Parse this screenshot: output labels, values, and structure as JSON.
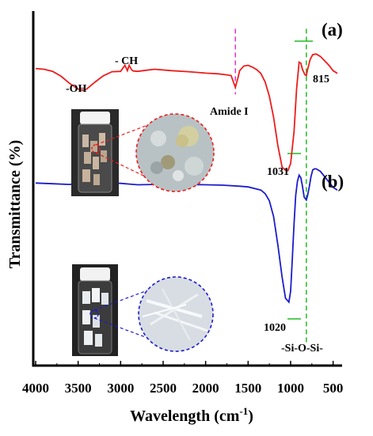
{
  "colors": {
    "series_a": "#ee1c1c",
    "series_b": "#1c1ccc",
    "amide_marker": "#dd33cc",
    "sio_marker": "#22bb22",
    "axis": "#000000"
  },
  "icons": {
    "vial_a": "vial-photo-icon",
    "zoom_a": "magnified-sample-red-circle",
    "vial_b": "vial-photo-icon",
    "zoom_b": "magnified-sample-blue-circle"
  },
  "chart_data": {
    "type": "line",
    "xlabel": "Wavelength (cm",
    "xlabel_sup": "-1",
    "xlabel_close": ")",
    "ylabel": "Transmittance (%)",
    "xlim": [
      4000,
      450
    ],
    "x_reversed": true,
    "grid": false,
    "x_ticks": [
      "4000",
      "3500",
      "3000",
      "2500",
      "2000",
      "1500",
      "1000",
      "500"
    ],
    "x_tick_values": [
      4000,
      3500,
      3000,
      2500,
      2000,
      1500,
      1000,
      500
    ],
    "ylim": [
      0,
      100
    ],
    "panel_labels": [
      "(a)",
      "(b)"
    ],
    "annotations": {
      "oh": "-OH",
      "ch": "- CH",
      "amide": "Amide I",
      "peak_a_815": "815",
      "peak_a_1031": "1031",
      "peak_b_1020": "1020",
      "sio": "-Si-O-Si-"
    },
    "reference_lines": [
      {
        "name": "Amide I",
        "x": 1650
      },
      {
        "name": "-Si-O-Si-",
        "x": 815
      }
    ],
    "series": [
      {
        "id": "a",
        "x": [
          4000,
          3900,
          3800,
          3700,
          3600,
          3500,
          3450,
          3400,
          3350,
          3300,
          3200,
          3100,
          3000,
          2950,
          2920,
          2900,
          2870,
          2850,
          2800,
          2700,
          2600,
          2400,
          2200,
          2000,
          1850,
          1750,
          1700,
          1650,
          1620,
          1600,
          1550,
          1500,
          1450,
          1400,
          1350,
          1300,
          1250,
          1200,
          1150,
          1100,
          1060,
          1031,
          1000,
          960,
          930,
          900,
          880,
          860,
          830,
          815,
          800,
          770,
          740,
          700,
          650,
          600,
          550,
          500,
          450
        ],
        "y": [
          83.8,
          83.6,
          83.0,
          81.6,
          79.6,
          78.0,
          77.7,
          78.0,
          79.0,
          80.0,
          81.8,
          82.9,
          83.0,
          84.7,
          83.2,
          84.7,
          83.4,
          83.1,
          83.0,
          83.3,
          83.6,
          83.2,
          82.9,
          82.5,
          82.3,
          82.0,
          81.8,
          78.5,
          81.1,
          83.2,
          84.5,
          84.7,
          84.2,
          83.5,
          82.4,
          80.0,
          76.0,
          70.0,
          62.0,
          56.0,
          55.1,
          55.0,
          57.0,
          66.0,
          78.0,
          85.6,
          85.3,
          83.5,
          82.0,
          81.8,
          83.5,
          86.4,
          87.7,
          87.9,
          87.2,
          86.0,
          84.7,
          83.2,
          82.4
        ]
      },
      {
        "id": "b",
        "x": [
          4000,
          3800,
          3600,
          3500,
          3400,
          3300,
          3200,
          3100,
          3000,
          2900,
          2800,
          2600,
          2400,
          2200,
          2000,
          1800,
          1600,
          1500,
          1400,
          1350,
          1300,
          1250,
          1200,
          1150,
          1100,
          1060,
          1020,
          1000,
          980,
          960,
          940,
          920,
          900,
          880,
          860,
          840,
          815,
          800,
          780,
          760,
          740,
          720,
          700,
          650,
          600,
          550,
          500,
          450
        ],
        "y": [
          51.5,
          51.3,
          51.1,
          51.4,
          51.6,
          51.6,
          51.4,
          51.5,
          51.4,
          51.2,
          51.0,
          51.1,
          51.2,
          51.1,
          51.0,
          50.9,
          50.6,
          50.4,
          49.8,
          49.5,
          48.5,
          46.5,
          42.0,
          34.0,
          25.0,
          19.0,
          17.9,
          21.0,
          30.0,
          40.0,
          48.0,
          52.0,
          53.7,
          53.0,
          50.5,
          47.5,
          46.7,
          48.0,
          50.5,
          53.3,
          55.2,
          55.5,
          55.5,
          54.8,
          53.3,
          51.8,
          50.3,
          49.5
        ]
      }
    ]
  }
}
